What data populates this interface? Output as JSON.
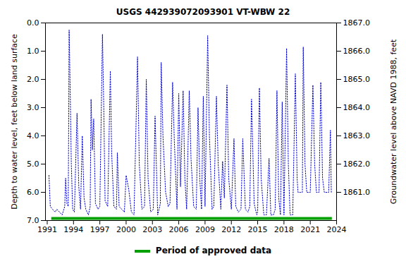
{
  "chart_data": {
    "type": "line",
    "title": "USGS 442939072093901 VT-WBW   22",
    "y_label": "Depth to water level, feet below land surface",
    "y2_label": "Groundwater level above NAVD 1988, feet",
    "x": [
      1991.2,
      1991.35,
      1991.6,
      1991.9,
      1992.1,
      1992.4,
      1992.7,
      1993.0,
      1993.1,
      1993.25,
      1993.4,
      1993.5,
      1993.6,
      1993.75,
      1993.9,
      1994.1,
      1994.4,
      1994.6,
      1994.8,
      1995.0,
      1995.2,
      1995.4,
      1995.7,
      1995.9,
      1996.0,
      1996.15,
      1996.3,
      1996.5,
      1996.8,
      1997.0,
      1997.3,
      1997.45,
      1997.6,
      1997.9,
      1998.2,
      1998.35,
      1998.6,
      1998.9,
      1999.0,
      1999.2,
      1999.5,
      1999.8,
      2000.0,
      2000.3,
      2000.6,
      2000.9,
      2001.3,
      2001.5,
      2001.8,
      2002.1,
      2002.3,
      2002.5,
      2002.8,
      2003.1,
      2003.3,
      2003.6,
      2003.9,
      2004.0,
      2004.2,
      2004.5,
      2004.8,
      2005.0,
      2005.3,
      2005.5,
      2005.8,
      2006.0,
      2006.2,
      2006.5,
      2006.7,
      2006.9,
      2007.2,
      2007.4,
      2007.7,
      2008.0,
      2008.2,
      2008.4,
      2008.6,
      2008.8,
      2009.0,
      2009.3,
      2009.5,
      2009.8,
      2010.0,
      2010.3,
      2010.5,
      2010.8,
      2011.0,
      2011.2,
      2011.5,
      2011.7,
      2012.0,
      2012.3,
      2012.5,
      2012.8,
      2013.1,
      2013.3,
      2013.6,
      2013.9,
      2014.1,
      2014.3,
      2014.6,
      2014.9,
      2015.0,
      2015.2,
      2015.4,
      2015.7,
      2016.0,
      2016.3,
      2016.5,
      2016.8,
      2017.0,
      2017.2,
      2017.4,
      2017.6,
      2017.8,
      2018.0,
      2018.3,
      2018.5,
      2018.7,
      2019.0,
      2019.3,
      2019.5,
      2019.6,
      2019.9,
      2020.1,
      2020.2,
      2020.4,
      2020.6,
      2021.0,
      2021.3,
      2021.5,
      2021.7,
      2022.0,
      2022.2,
      2022.4,
      2022.6,
      2023.0,
      2023.1,
      2023.3,
      2023.4
    ],
    "series": [
      {
        "name": "Depth to water level",
        "color": "#0000cc",
        "line_style": "dotted",
        "values": [
          5.4,
          6.5,
          6.6,
          6.7,
          6.6,
          6.7,
          6.8,
          6.5,
          5.5,
          6.4,
          6.5,
          0.25,
          2.0,
          5.0,
          6.6,
          6.7,
          3.2,
          5.8,
          6.6,
          4.0,
          6.2,
          6.6,
          6.8,
          6.5,
          2.7,
          4.5,
          3.4,
          6.4,
          6.6,
          6.5,
          0.4,
          3.0,
          6.3,
          6.5,
          1.7,
          4.6,
          6.5,
          6.6,
          4.6,
          6.5,
          6.6,
          6.7,
          5.4,
          5.9,
          6.7,
          6.8,
          1.2,
          5.0,
          6.6,
          6.5,
          2.0,
          5.5,
          6.7,
          6.6,
          3.3,
          6.8,
          6.4,
          1.4,
          4.0,
          6.0,
          6.5,
          6.4,
          2.1,
          4.2,
          6.6,
          2.5,
          5.8,
          2.4,
          5.5,
          6.6,
          2.4,
          4.8,
          6.5,
          6.6,
          3.0,
          5.5,
          6.6,
          2.6,
          6.5,
          0.45,
          4.0,
          6.6,
          6.5,
          2.6,
          5.0,
          6.6,
          4.9,
          6.2,
          2.2,
          5.5,
          6.6,
          4.1,
          6.5,
          6.7,
          6.6,
          4.1,
          6.6,
          6.7,
          6.5,
          2.7,
          6.4,
          6.8,
          6.7,
          2.3,
          5.5,
          6.8,
          6.8,
          4.8,
          6.8,
          6.8,
          6.6,
          2.4,
          6.2,
          6.8,
          2.8,
          6.8,
          0.9,
          5.0,
          6.8,
          6.8,
          1.8,
          5.5,
          6.0,
          6.0,
          6.0,
          0.85,
          5.0,
          6.0,
          6.0,
          2.2,
          5.0,
          6.0,
          6.0,
          2.1,
          5.5,
          6.0,
          6.0,
          6.0,
          3.8,
          6.0
        ]
      }
    ],
    "approved_period": {
      "label": "Period of approved data",
      "start": 1991.5,
      "end": 2023.5,
      "color": "#00a000"
    },
    "xlim": [
      1990.8,
      2024
    ],
    "xticks": [
      1991,
      1994,
      1997,
      2000,
      2003,
      2006,
      2009,
      2012,
      2015,
      2018,
      2021,
      2024
    ],
    "ylim": [
      0,
      7
    ],
    "yticks": [
      {
        "value": 0,
        "label": "0.0"
      },
      {
        "value": 1,
        "label": "1.0"
      },
      {
        "value": 2,
        "label": "2.0"
      },
      {
        "value": 3,
        "label": "3.0"
      },
      {
        "value": 4,
        "label": "4.0"
      },
      {
        "value": 5,
        "label": "5.0"
      },
      {
        "value": 6,
        "label": "6.0"
      },
      {
        "value": 7,
        "label": "7.0"
      }
    ],
    "y2lim": [
      1867,
      1860
    ],
    "y2ticks": [
      {
        "value": 1867,
        "label": "1867.0"
      },
      {
        "value": 1866,
        "label": "1866.0"
      },
      {
        "value": 1865,
        "label": "1865.0"
      },
      {
        "value": 1864,
        "label": "1864.0"
      },
      {
        "value": 1863,
        "label": "1863.0"
      },
      {
        "value": 1862,
        "label": "1862.0"
      },
      {
        "value": 1861,
        "label": "1861.0"
      }
    ],
    "grid": false
  }
}
